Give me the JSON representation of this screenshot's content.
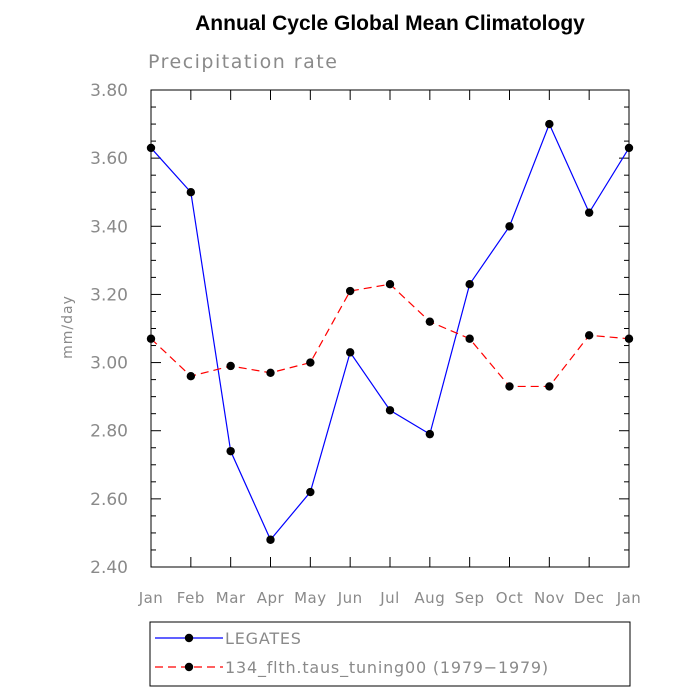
{
  "chart_data": {
    "type": "line",
    "title": "Annual Cycle Global Mean Climatology",
    "subtitle": "Precipitation rate",
    "xlabel": "",
    "ylabel": "mm/day",
    "categories": [
      "Jan",
      "Feb",
      "Mar",
      "Apr",
      "May",
      "Jun",
      "Jul",
      "Aug",
      "Sep",
      "Oct",
      "Nov",
      "Dec",
      "Jan"
    ],
    "ylim": [
      2.4,
      3.8
    ],
    "yticks": [
      "2.40",
      "2.60",
      "2.80",
      "3.00",
      "3.20",
      "3.40",
      "3.60",
      "3.80"
    ],
    "grid": false,
    "legend_position": "bottom",
    "series": [
      {
        "name": "LEGATES",
        "color": "#0000ff",
        "line_style": "solid",
        "values": [
          3.63,
          3.5,
          2.74,
          2.48,
          2.62,
          3.03,
          2.86,
          2.79,
          3.23,
          3.4,
          3.7,
          3.44,
          3.63
        ]
      },
      {
        "name": "134_flth.taus_tuning00 (1979−1979)",
        "color": "#ff0000",
        "line_style": "dashed",
        "values": [
          3.07,
          2.96,
          2.99,
          2.97,
          3.0,
          3.21,
          3.23,
          3.12,
          3.07,
          2.93,
          2.93,
          3.08,
          3.07
        ]
      }
    ]
  }
}
